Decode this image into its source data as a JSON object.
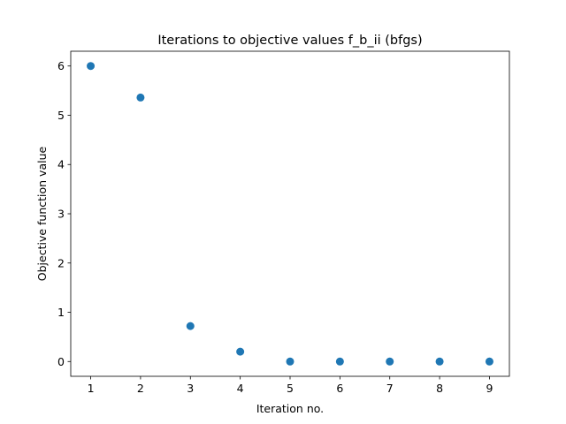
{
  "chart_data": {
    "type": "scatter",
    "title": "Iterations to objective values f_b_ii (bfgs)",
    "xlabel": "Iteration no.",
    "ylabel": "Objective function value",
    "x": [
      1,
      2,
      3,
      4,
      5,
      6,
      7,
      8,
      9
    ],
    "y": [
      6.0,
      5.36,
      0.72,
      0.2,
      0.0,
      0.0,
      0.0,
      0.0,
      0.0
    ],
    "xlim": [
      0.6,
      9.4
    ],
    "ylim": [
      -0.3,
      6.3
    ],
    "xticks": [
      1,
      2,
      3,
      4,
      5,
      6,
      7,
      8,
      9
    ],
    "yticks": [
      0,
      1,
      2,
      3,
      4,
      5,
      6
    ],
    "grid": false,
    "marker_color": "#1f77b4"
  }
}
